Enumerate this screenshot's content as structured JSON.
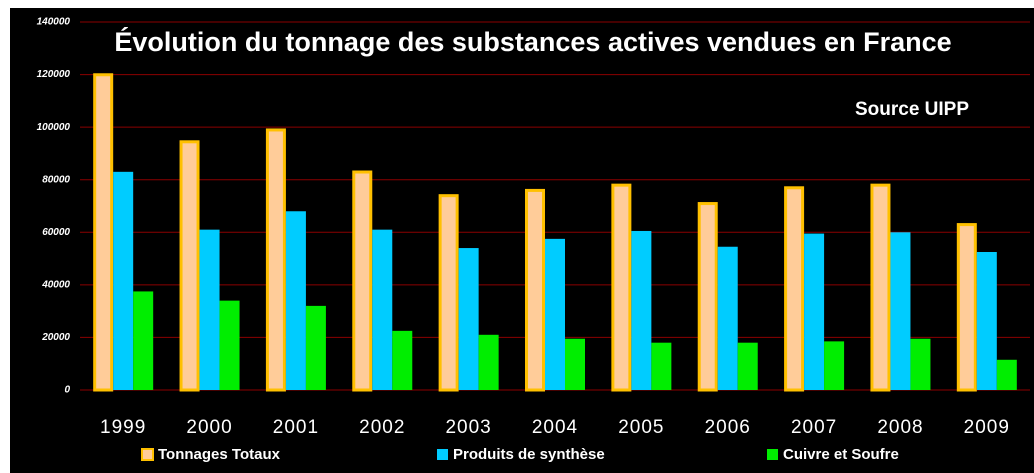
{
  "chart_data": {
    "type": "bar",
    "title": "Évolution du tonnage des substances actives vendues en France",
    "annotation": "Source UIPP",
    "categories": [
      "1999",
      "2000",
      "2001",
      "2002",
      "2003",
      "2004",
      "2005",
      "2006",
      "2007",
      "2008",
      "2009"
    ],
    "series": [
      {
        "name": "Tonnages Totaux",
        "color": "#ffcc99",
        "stroke": "#ffc000",
        "values": [
          120500,
          95000,
          99500,
          83500,
          74500,
          76500,
          78500,
          71500,
          77500,
          78500,
          63500
        ]
      },
      {
        "name": "Produits de synthèse",
        "color": "#00ccff",
        "values": [
          83000,
          61000,
          68000,
          61000,
          54000,
          57500,
          60500,
          54500,
          59500,
          60000,
          52500
        ]
      },
      {
        "name": "Cuivre et Soufre",
        "color": "#00ee00",
        "values": [
          37500,
          34000,
          32000,
          22500,
          21000,
          19500,
          18000,
          18000,
          18500,
          19500,
          11500
        ]
      }
    ],
    "ylim": [
      0,
      140000
    ],
    "yticks": [
      0,
      20000,
      40000,
      60000,
      80000,
      100000,
      120000,
      140000
    ],
    "grid": true,
    "grid_color": "#8b0000",
    "legend": "bottom"
  }
}
